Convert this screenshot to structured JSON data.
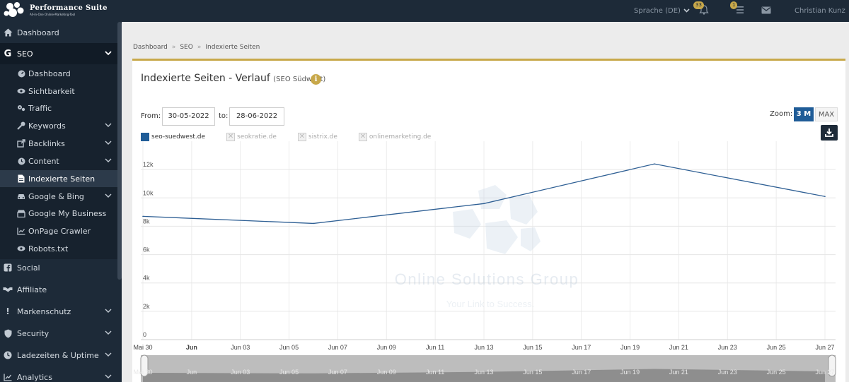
{
  "header": {
    "logo_title": "Performance Suite",
    "logo_subtitle": "All-in-One Online-Marketing-Tool",
    "language": "Sprache (DE)",
    "notifications_count": "33",
    "tasks_count": "1",
    "user_name": "Christian Kunz"
  },
  "sidebar": {
    "items": [
      {
        "label": "Dashboard",
        "icon": "home-icon"
      },
      {
        "label": "SEO",
        "icon": "google-g-icon"
      },
      {
        "label": "Social",
        "icon": "facebook-icon"
      },
      {
        "label": "Affiliate",
        "icon": "handshake-icon"
      },
      {
        "label": "Markenschutz",
        "icon": "exclamation-icon"
      },
      {
        "label": "Security",
        "icon": "shield-icon"
      },
      {
        "label": "Ladezeiten & Uptime",
        "icon": "clock-icon"
      },
      {
        "label": "Analytics",
        "icon": "chart-icon"
      }
    ],
    "seo_sub": [
      {
        "label": "Dashboard",
        "icon": "tachometer-icon"
      },
      {
        "label": "Sichtbarkeit",
        "icon": "eye-icon"
      },
      {
        "label": "Traffic",
        "icon": "cogs-icon"
      },
      {
        "label": "Keywords",
        "icon": "key-icon"
      },
      {
        "label": "Backlinks",
        "icon": "external-link-icon"
      },
      {
        "label": "Content",
        "icon": "clock-icon"
      },
      {
        "label": "Indexierte Seiten",
        "icon": "file-icon"
      },
      {
        "label": "Google & Bing",
        "icon": "car-icon"
      },
      {
        "label": "Google My Business",
        "icon": "store-icon"
      },
      {
        "label": "OnPage Crawler",
        "icon": "line-chart-icon"
      },
      {
        "label": "Robots.txt",
        "icon": "eye-icon"
      }
    ]
  },
  "breadcrumb": [
    "Dashboard",
    "SEO",
    "Indexierte Seiten"
  ],
  "card": {
    "title": "Indexierte Seiten - Verlauf",
    "subtitle": "(SEO Südwest)",
    "from_label": "From:",
    "from_value": "30-05-2022",
    "to_label": "to:",
    "to_value": "28-06-2022",
    "zoom_label": "Zoom:",
    "zoom_3m": "3 M",
    "zoom_max": "MAX"
  },
  "watermark": {
    "title": "Online Solutions Group",
    "tagline": "Your Link to Success."
  },
  "colors": {
    "primary": "#1f5c97",
    "accent": "#c8a84a",
    "sidebar": "#1d2a38"
  },
  "chart_data": {
    "type": "line",
    "x_tick_labels": [
      "Mai 30",
      "Jun",
      "Jun 03",
      "Jun 05",
      "Jun 07",
      "Jun 09",
      "Jun 11",
      "Jun 13",
      "Jun 15",
      "Jun 17",
      "Jun 19",
      "Jun 21",
      "Jun 23",
      "Jun 25",
      "Jun 27"
    ],
    "y_tick_labels": [
      "0",
      "2k",
      "4k",
      "6k",
      "8k",
      "10k",
      "12k"
    ],
    "ylim": [
      0,
      14000
    ],
    "xlim": [
      "2022-05-30",
      "2022-06-27"
    ],
    "series": [
      {
        "name": "seo-suedwest.de",
        "visible": true,
        "x": [
          "2022-05-30",
          "2022-06-06",
          "2022-06-13",
          "2022-06-20",
          "2022-06-27"
        ],
        "y": [
          8700,
          8200,
          9600,
          12400,
          10100
        ]
      },
      {
        "name": "seokratie.de",
        "visible": false
      },
      {
        "name": "sistrix.de",
        "visible": false
      },
      {
        "name": "onlinemarketing.de",
        "visible": false
      }
    ],
    "grid": true,
    "navigator": true
  }
}
